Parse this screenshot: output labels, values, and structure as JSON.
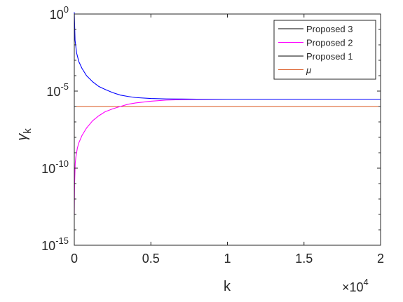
{
  "chart_data": {
    "type": "line",
    "title": "",
    "xlabel": "k",
    "ylabel": "γ",
    "ylabel_subscript": "k",
    "x_multiplier_label": "×10",
    "x_multiplier_exponent": "4",
    "xlim": [
      0,
      20000
    ],
    "ylim": [
      1e-15,
      1
    ],
    "yscale": "log",
    "x_ticks": [
      0,
      5000,
      10000,
      15000,
      20000
    ],
    "x_tick_labels": [
      "0",
      "0.5",
      "1",
      "1.5",
      "2"
    ],
    "y_ticks": [
      1,
      1e-05,
      1e-10,
      1e-15
    ],
    "y_tick_labels": [
      {
        "base": "10",
        "exp": "0"
      },
      {
        "base": "10",
        "exp": "-5"
      },
      {
        "base": "10",
        "exp": "-10"
      },
      {
        "base": "10",
        "exp": "-15"
      }
    ],
    "grid": false,
    "legend_position": "top-right",
    "series": [
      {
        "name": "Proposed 3",
        "legend_color": "#000000",
        "color": "#0000ff",
        "x": [
          0,
          50,
          150,
          300,
          500,
          800,
          1200,
          1600,
          2000,
          2500,
          3000,
          3500,
          4000,
          5000,
          6000,
          7000,
          8000,
          10000,
          12000,
          15000,
          20000
        ],
        "y": [
          1.3,
          0.02,
          0.003,
          0.0008,
          0.0003,
          0.0001,
          4e-05,
          2e-05,
          1.3e-05,
          8e-06,
          5.5e-06,
          4.5e-06,
          3.8e-06,
          3.3e-06,
          3.1e-06,
          3.05e-06,
          3e-06,
          3e-06,
          3e-06,
          3e-06,
          3e-06
        ]
      },
      {
        "name": "Proposed 2",
        "legend_color": "#ff00ff",
        "color": "#ff00ff",
        "x": [
          0,
          20,
          60,
          100,
          200,
          300,
          500,
          800,
          1200,
          1600,
          2000,
          2500,
          3000,
          3500,
          4000,
          5000,
          6000,
          7000,
          8000,
          10000,
          12000,
          15000,
          20000
        ],
        "y": [
          1e-13,
          1e-11,
          2e-10,
          5e-10,
          2e-09,
          4.5e-09,
          1.3e-08,
          4e-08,
          1.2e-07,
          2.5e-07,
          4.5e-07,
          7e-07,
          1e-06,
          1.4e-06,
          1.7e-06,
          2.2e-06,
          2.6e-06,
          2.8e-06,
          2.9e-06,
          3e-06,
          3e-06,
          3e-06,
          3e-06
        ]
      },
      {
        "name": "Proposed 1",
        "legend_color": "#000000",
        "color": "#000000",
        "x": [],
        "y": []
      },
      {
        "name": "μ",
        "legend_color": "#d95319",
        "color": "#d95319",
        "x": [
          0,
          20000
        ],
        "y": [
          1e-06,
          1e-06
        ]
      }
    ]
  }
}
